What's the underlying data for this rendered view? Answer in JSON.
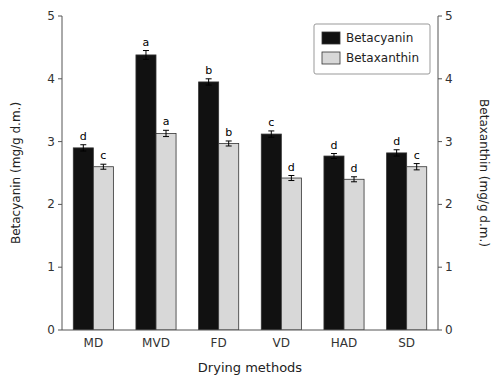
{
  "chart_data": {
    "type": "bar",
    "categories": [
      "MD",
      "MVD",
      "FD",
      "VD",
      "HAD",
      "SD"
    ],
    "series": [
      {
        "name": "Betacyanin",
        "color": "#111111",
        "values": [
          2.9,
          4.38,
          3.95,
          3.12,
          2.77,
          2.82
        ],
        "errors": [
          0.05,
          0.07,
          0.05,
          0.05,
          0.04,
          0.05
        ],
        "letters": [
          "d",
          "a",
          "b",
          "c",
          "d",
          "d"
        ]
      },
      {
        "name": "Betaxanthin",
        "color": "#d8d8d8",
        "axis": "y2",
        "values": [
          2.6,
          3.13,
          2.97,
          2.42,
          2.4,
          2.6
        ],
        "errors": [
          0.04,
          0.05,
          0.04,
          0.04,
          0.04,
          0.05
        ],
        "letters": [
          "c",
          "a",
          "b",
          "d",
          "d",
          "c"
        ]
      }
    ],
    "xlabel": "Drying methods",
    "ylabel": "Betacyanin (mg/g d.m.)",
    "y2label": "Betaxanthin (mg/g d.m.)",
    "ylim": [
      0,
      5
    ],
    "yticks": [
      0,
      1,
      2,
      3,
      4,
      5
    ],
    "y2lim": [
      0,
      5
    ],
    "y2ticks": [
      0,
      1,
      2,
      3,
      4,
      5
    ],
    "grid": false,
    "legend": "upper right"
  }
}
